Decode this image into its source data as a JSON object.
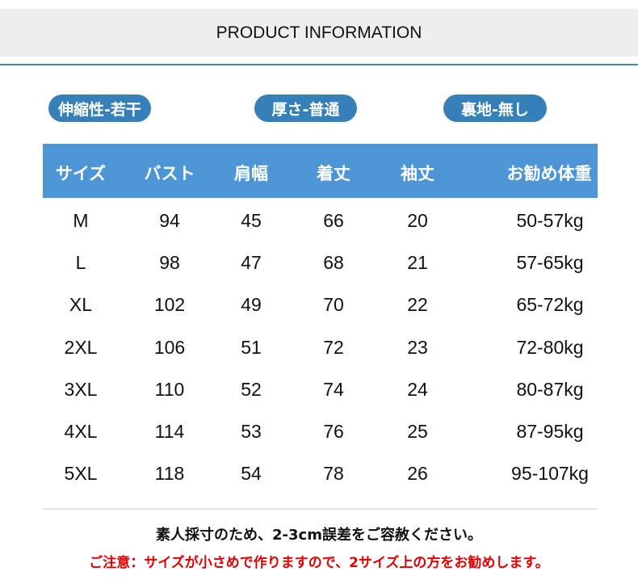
{
  "header": {
    "title": "PRODUCT INFORMATION"
  },
  "tags": [
    "伸縮性-若干",
    "厚さ-普通",
    "裏地-無し"
  ],
  "table": {
    "headers": [
      "サイズ",
      "バスト",
      "肩幅",
      "着丈",
      "袖丈",
      "お勧め体重"
    ],
    "rows": [
      [
        "M",
        "94",
        "45",
        "66",
        "20",
        "50-57kg"
      ],
      [
        "L",
        "98",
        "47",
        "68",
        "21",
        "57-65kg"
      ],
      [
        "XL",
        "102",
        "49",
        "70",
        "22",
        "65-72kg"
      ],
      [
        "2XL",
        "106",
        "51",
        "72",
        "23",
        "72-80kg"
      ],
      [
        "3XL",
        "110",
        "52",
        "74",
        "24",
        "80-87kg"
      ],
      [
        "4XL",
        "114",
        "53",
        "76",
        "25",
        "87-95kg"
      ],
      [
        "5XL",
        "118",
        "54",
        "78",
        "26",
        "95-107kg"
      ]
    ]
  },
  "notes": {
    "measurement": "素人採寸のため、2-3cm誤差をご容赦ください。",
    "caution": "ご注意：サイズが小さめで作りますので、2サイズ上の方をお勧めします。"
  },
  "colors": {
    "accent": "#4d95d5",
    "pill": "#3580b9",
    "caution": "#e60000"
  }
}
